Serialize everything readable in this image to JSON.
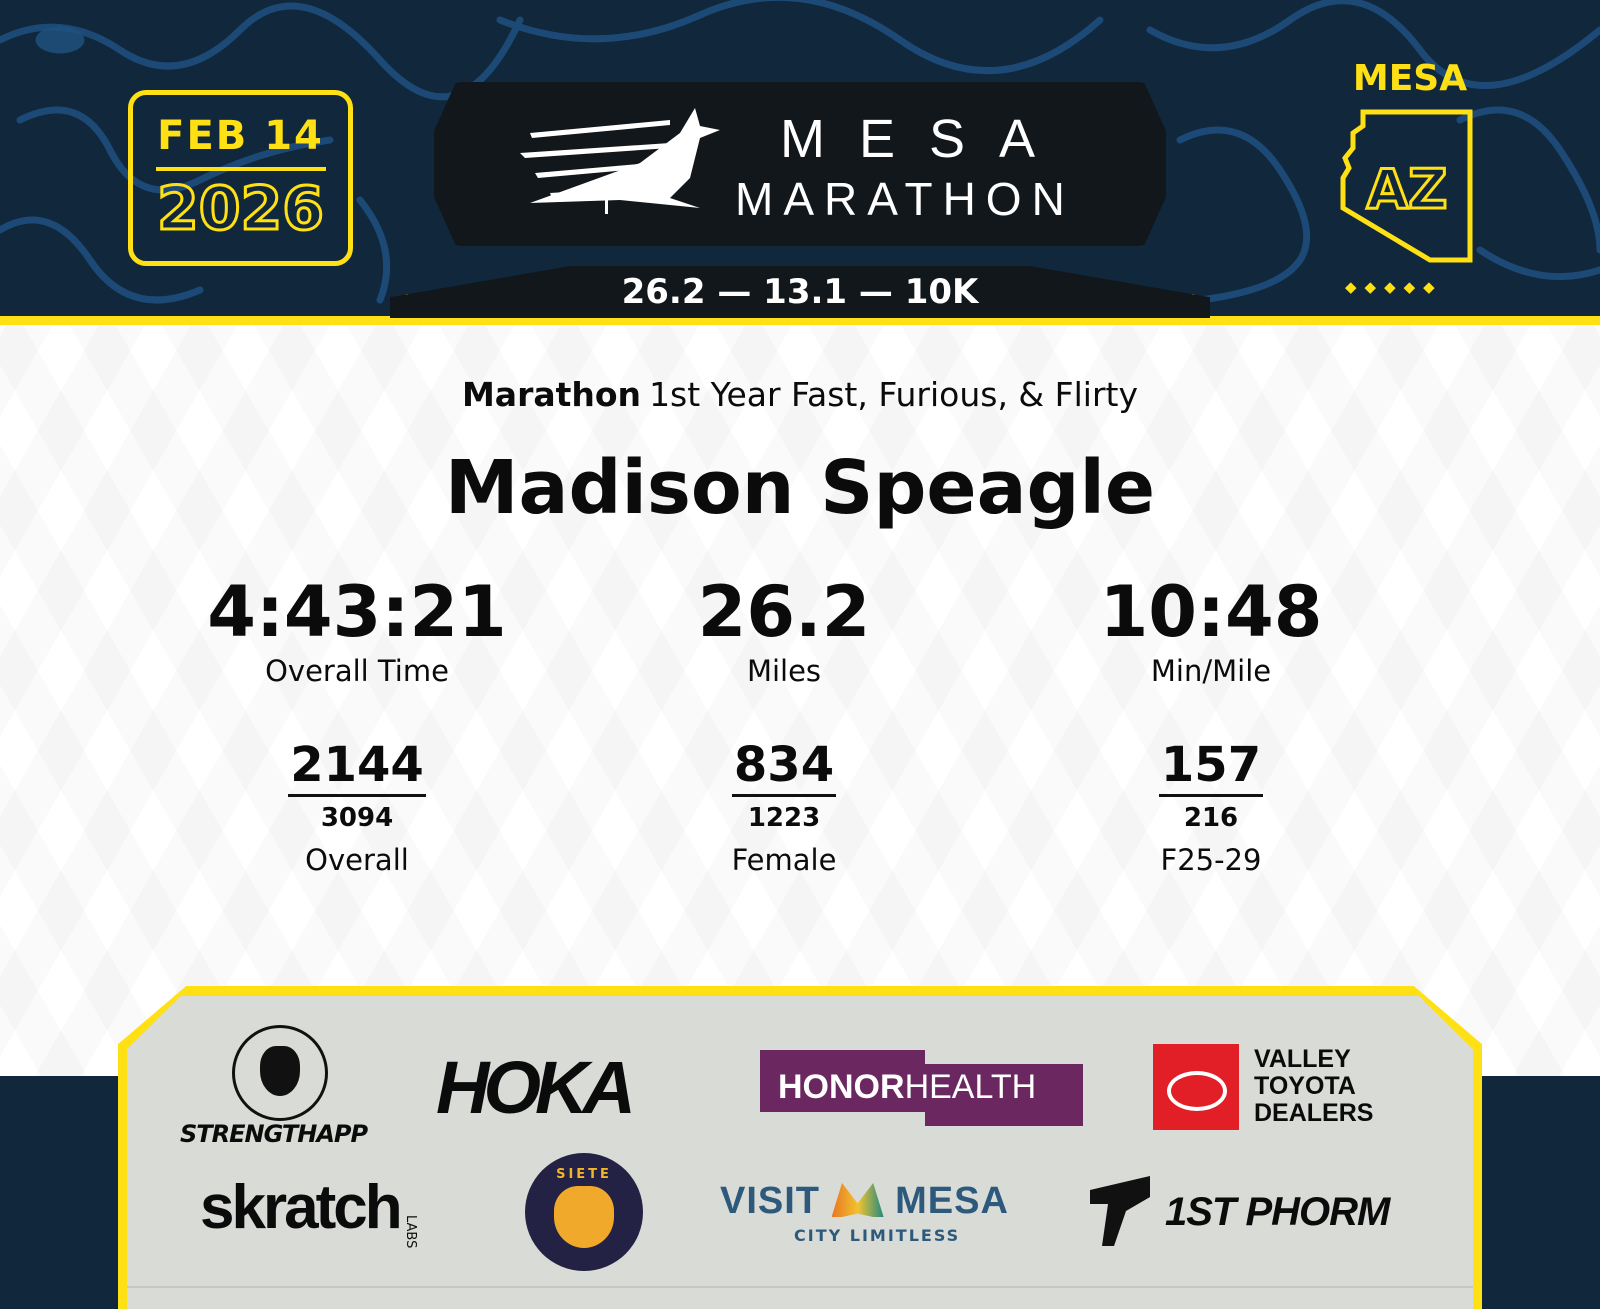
{
  "header": {
    "date": "FEB 14",
    "year": "2026",
    "logo_line1": "MESA",
    "logo_line2": "MARATHON",
    "distances": "26.2 — 13.1 — 10K",
    "location_label": "MESA",
    "state": "AZ",
    "accent_color": "#ffe014",
    "background_color": "#10273c"
  },
  "result": {
    "race": "Marathon",
    "division": "1st Year Fast, Furious, & Flirty",
    "runner_name": "Madison Speagle",
    "stats": [
      {
        "value": "4:43:21",
        "label": "Overall Time"
      },
      {
        "value": "26.2",
        "label": "Miles"
      },
      {
        "value": "10:48",
        "label": "Min/Mile"
      }
    ],
    "ranks": [
      {
        "place": "2144",
        "total": "3094",
        "label": "Overall"
      },
      {
        "place": "834",
        "total": "1223",
        "label": "Female"
      },
      {
        "place": "157",
        "total": "216",
        "label": "F25-29"
      }
    ]
  },
  "sponsors": {
    "strengthapp": "STRENGTHAPP",
    "hoka": "HOKA",
    "honor": "HONOR",
    "health": "HEALTH",
    "toyota_1": "VALLEY",
    "toyota_2": "TOYOTA",
    "toyota_3": "DEALERS",
    "skratch": "skratch",
    "skratch_labs": "LABS",
    "siete": "SIETE",
    "visit": "VISIT",
    "mesa": "MESA",
    "city_limitless": "CITY LIMITLESS",
    "phorm": "1ST PHORM"
  }
}
